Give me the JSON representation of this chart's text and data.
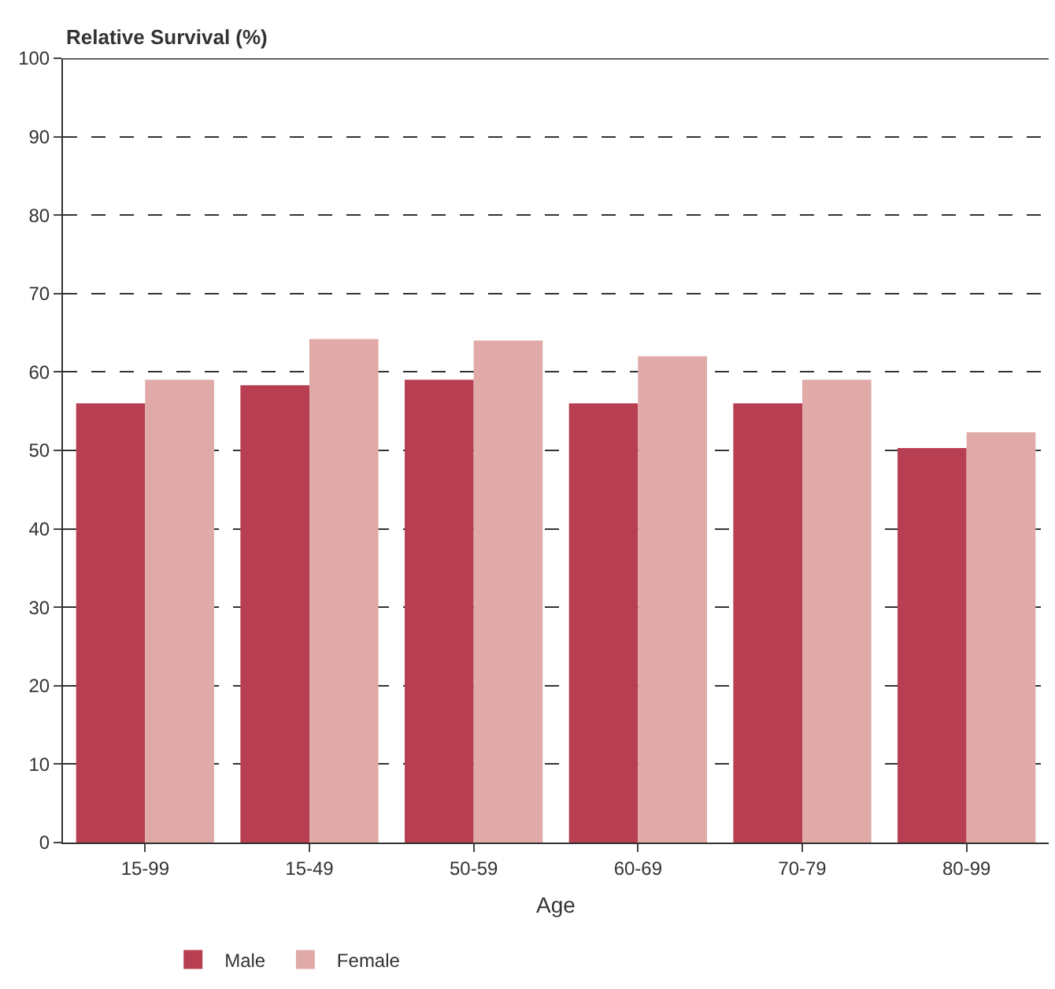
{
  "chart_data": {
    "type": "bar",
    "ylabel": "Relative Survival (%)",
    "xlabel": "Age",
    "categories": [
      "15-99",
      "15-49",
      "50-59",
      "60-69",
      "70-79",
      "80-99"
    ],
    "series": [
      {
        "name": "Male",
        "color": "#b83f52",
        "values": [
          56,
          58.3,
          59,
          56,
          56,
          50.3
        ]
      },
      {
        "name": "Female",
        "color": "#e0aaa8",
        "values": [
          59,
          64.2,
          64,
          62,
          59,
          52.3
        ]
      }
    ],
    "ylim": [
      0,
      100
    ],
    "yticks": [
      0,
      10,
      20,
      30,
      40,
      50,
      60,
      70,
      80,
      90,
      100
    ],
    "grid": "y",
    "line_style": "dashed",
    "legend": "bottom left"
  }
}
